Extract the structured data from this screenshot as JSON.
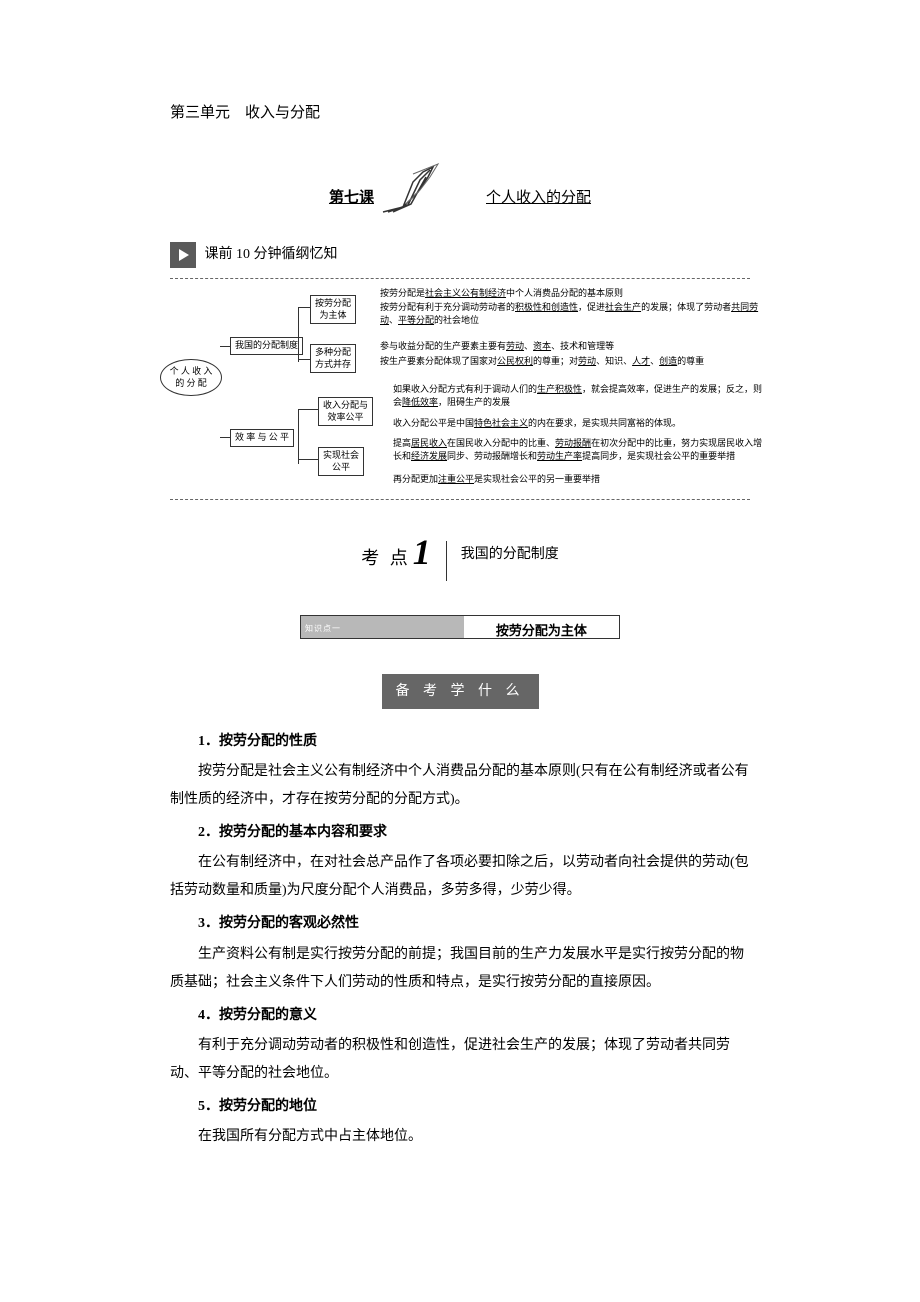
{
  "unit_title": "第三单元　收入与分配",
  "lesson": {
    "label": "第七课",
    "title": "个人收入的分配"
  },
  "pre_class": "课前 10 分钟循纲忆知",
  "diagram": {
    "root": "个 人 收 入\n的 分 配",
    "branch1": "我国的分配制度",
    "branch2": "效 率 与 公 平",
    "node1": "按劳分配\n为主体",
    "node2": "多种分配\n方式并存",
    "node3": "收入分配与\n效率公平",
    "node4": "实现社会\n公平",
    "text1_a": "按劳分配是",
    "text1_b": "社会主义公有制经济",
    "text1_c": "中个人消费品分配的基本原则",
    "text2_a": "按劳分配有利于充分调动劳动者的",
    "text2_b": "积极性和创造性",
    "text2_c": "，促进",
    "text2_d": "社会生产",
    "text2_e": "的发展；体现了劳动者",
    "text2_f": "共同劳动",
    "text2_g": "、",
    "text2_h": "平等分配",
    "text2_i": "的社会地位",
    "text3_a": "参与收益分配的生产要素主要有",
    "text3_b": "劳动",
    "text3_c": "、",
    "text3_d": "资本",
    "text3_e": "、技术和管理等",
    "text4_a": "按生产要素分配体现了国家对",
    "text4_b": "公民权利",
    "text4_c": "的尊重；对",
    "text4_d": "劳动",
    "text4_e": "、知识、",
    "text4_f": "人才",
    "text4_g": "、",
    "text4_h": "创造",
    "text4_i": "的尊重",
    "text5_a": "如果收入分配方式有利于调动人们的",
    "text5_b": "生产积极性",
    "text5_c": "，就会提高效率，促进生产的发展；反之，则会",
    "text5_d": "降低效率",
    "text5_e": "，阻碍生产的发展",
    "text6_a": "收入分配公平是中国",
    "text6_b": "特色社会主义",
    "text6_c": "的内在要求，是实现共同富裕的体现。",
    "text7_a": "提高",
    "text7_b": "居民收入",
    "text7_c": "在国民收入分配中的比重、",
    "text7_d": "劳动报酬",
    "text7_e": "在初次分配中的比重，努力实现居民收入增长和",
    "text7_f": "经济发展",
    "text7_g": "同步、劳动报酬增长和",
    "text7_h": "劳动生产率",
    "text7_i": "提高同步，是实现社会公平的重要举措",
    "text8_a": "再分配更加",
    "text8_b": "注重公平",
    "text8_c": "是实现社会公平的另一重要举措"
  },
  "kaodian": {
    "label": "考 点",
    "num": "1",
    "title": "我国的分配制度"
  },
  "knowledge": {
    "left": "知识点一",
    "right": "按劳分配为主体"
  },
  "badge": "备 考 学 什 么",
  "sections": [
    {
      "h": "1．按劳分配的性质",
      "p": "按劳分配是社会主义公有制经济中个人消费品分配的基本原则(只有在公有制经济或者公有制性质的经济中，才存在按劳分配的分配方式)。"
    },
    {
      "h": "2．按劳分配的基本内容和要求",
      "p": "在公有制经济中，在对社会总产品作了各项必要扣除之后，以劳动者向社会提供的劳动(包括劳动数量和质量)为尺度分配个人消费品，多劳多得，少劳少得。"
    },
    {
      "h": "3．按劳分配的客观必然性",
      "p": "生产资料公有制是实行按劳分配的前提；我国目前的生产力发展水平是实行按劳分配的物质基础；社会主义条件下人们劳动的性质和特点，是实行按劳分配的直接原因。"
    },
    {
      "h": "4．按劳分配的意义",
      "p": "有利于充分调动劳动者的积极性和创造性，促进社会生产的发展；体现了劳动者共同劳动、平等分配的社会地位。"
    },
    {
      "h": "5．按劳分配的地位",
      "p": "在我国所有分配方式中占主体地位。"
    }
  ]
}
